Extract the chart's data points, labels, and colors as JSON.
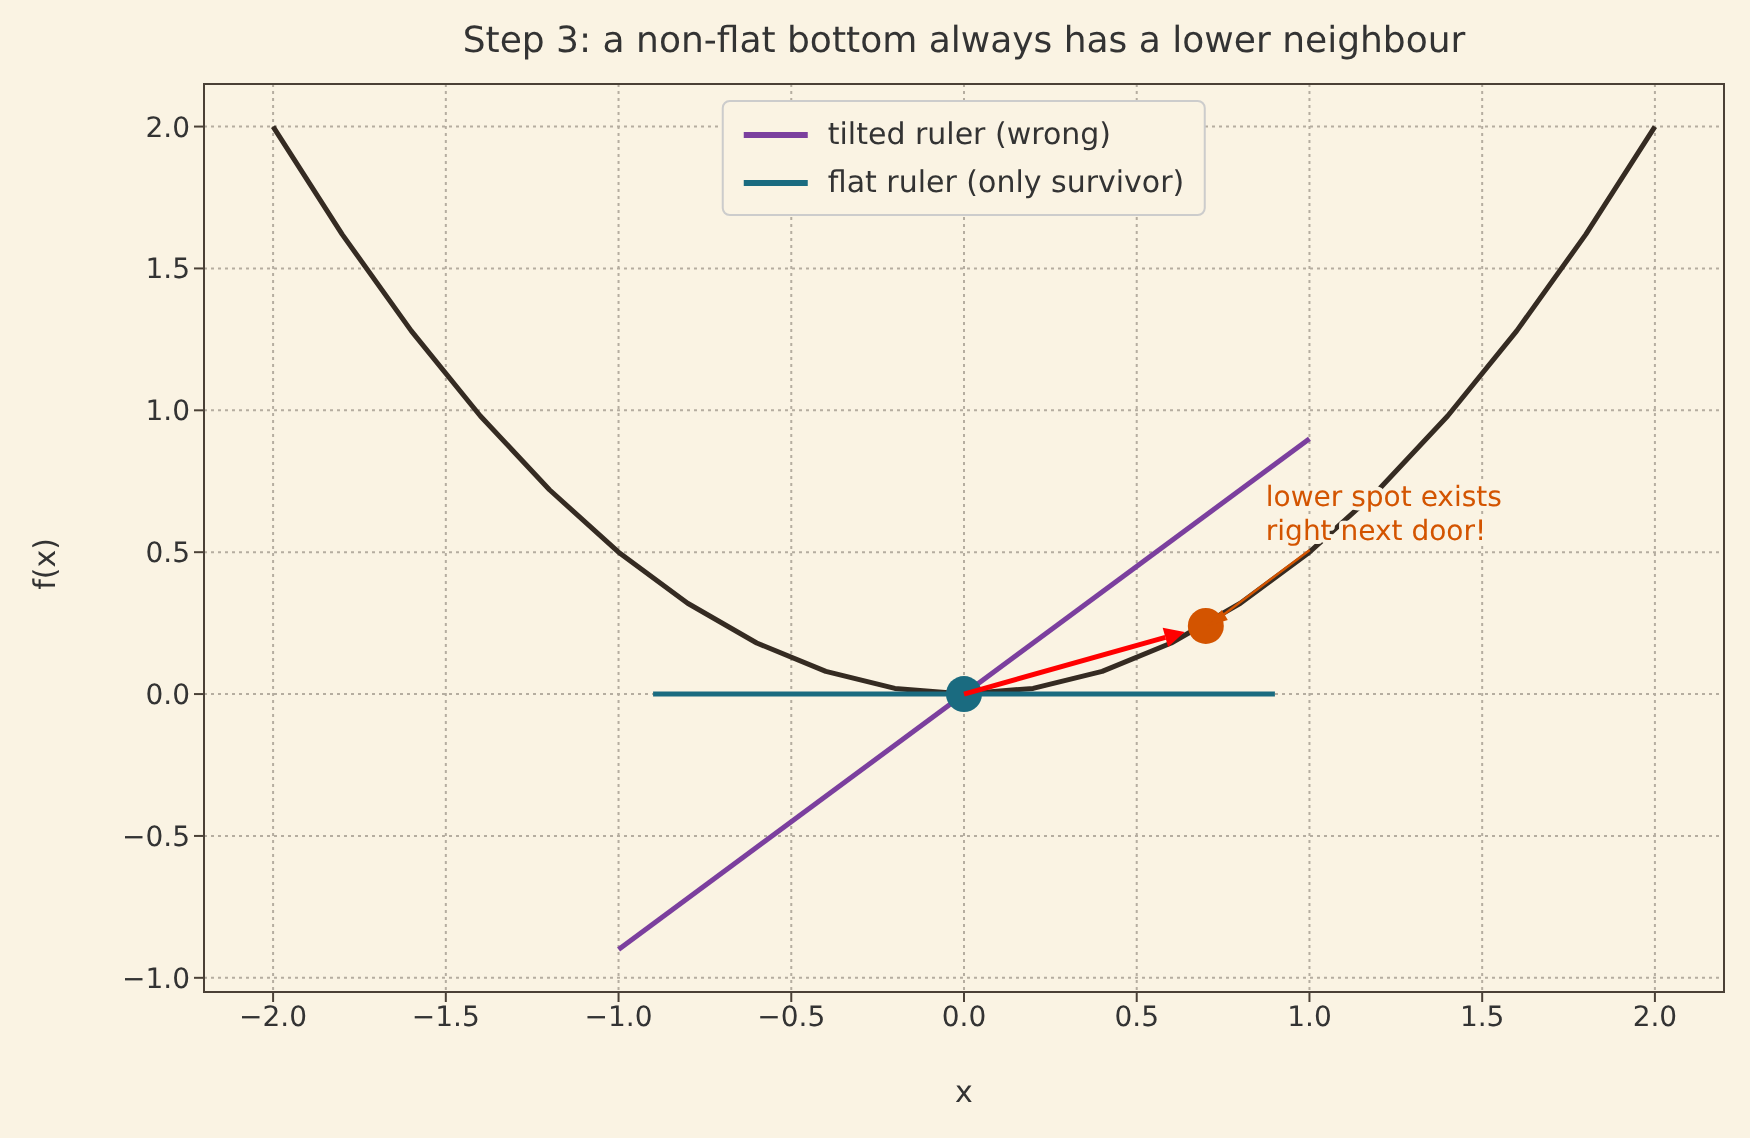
{
  "chart_data": {
    "type": "line",
    "title": "Step 3: a non-flat bottom always has a lower neighbour",
    "xlabel": "x",
    "ylabel": "f(x)",
    "xlim": [
      -2.2,
      2.2
    ],
    "ylim": [
      -1.05,
      2.15
    ],
    "xticks": [
      {
        "value": -2,
        "label": "−2.0"
      },
      -1.5,
      {
        "value": -1,
        "label": "−1.0"
      },
      -0.5,
      {
        "value": 0,
        "label": "0.0"
      },
      0.5,
      {
        "value": 1,
        "label": "1.0"
      },
      1.5,
      {
        "value": 2,
        "label": "2.0"
      }
    ],
    "yticks": [
      {
        "value": -1,
        "label": "−1.0"
      },
      -0.5,
      {
        "value": 0,
        "label": "0.0"
      },
      0.5,
      {
        "value": 1,
        "label": "1.0"
      },
      1.5,
      {
        "value": 2,
        "label": "2.0"
      }
    ],
    "grid": true,
    "legend": "top",
    "line_style": "solid",
    "series": [
      {
        "type": "line",
        "color": "#352b22",
        "x": [
          -2,
          -1.8,
          -1.6,
          -1.4,
          -1.2,
          -1,
          -0.8,
          -0.6,
          -0.4,
          -0.2,
          0,
          0.2,
          0.4,
          0.6,
          0.8,
          1,
          1.2,
          1.4,
          1.6,
          1.8,
          2
        ],
        "values": [
          2,
          1.62,
          1.28,
          0.98,
          0.72,
          0.5,
          0.32,
          0.18,
          0.08,
          0.02,
          0,
          0.02,
          0.08,
          0.18,
          0.32,
          0.5,
          0.72,
          0.98,
          1.28,
          1.62,
          2
        ]
      },
      {
        "type": "line",
        "name": "tilted ruler (wrong)",
        "color": "#7b3f9e",
        "x": [
          -1,
          1
        ],
        "values": [
          -0.9,
          0.9
        ]
      },
      {
        "type": "line",
        "name": "flat ruler (only survivor)",
        "color": "#1a6b80",
        "x": [
          -0.9,
          0.9
        ],
        "values": [
          0,
          0
        ]
      },
      {
        "type": "scatter",
        "marker": "circle",
        "color": "#1a6b80",
        "x": [
          0
        ],
        "values": [
          0
        ]
      },
      {
        "type": "scatter",
        "marker": "circle",
        "color": "#d35400",
        "x": [
          0.7
        ],
        "values": [
          0.24
        ]
      }
    ],
    "annotations": [
      {
        "text": "lower spot exists\nright next door!",
        "x": 0.7,
        "y": 0.24
      }
    ]
  }
}
